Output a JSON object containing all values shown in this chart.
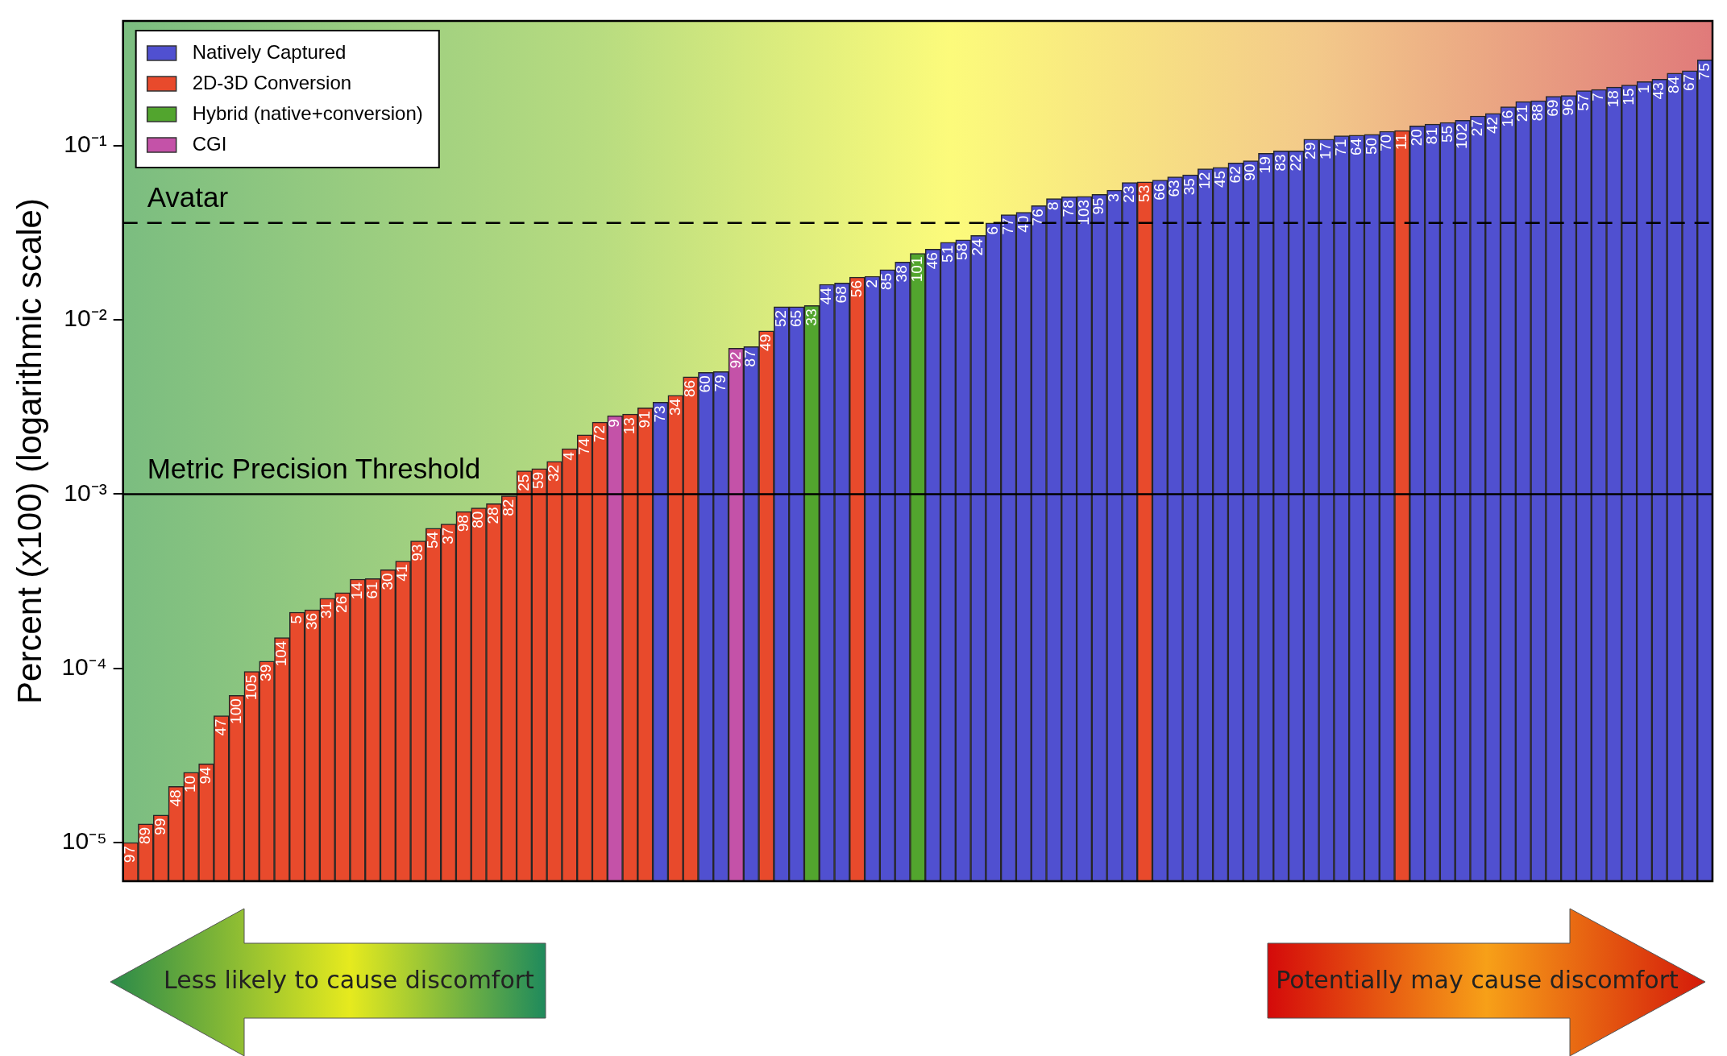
{
  "chart_data": {
    "type": "bar",
    "ylabel": "Percent (x100) (logarithmic scale)",
    "categories": [
      "97",
      "89",
      "99",
      "48",
      "10",
      "94",
      "47",
      "100",
      "105",
      "39",
      "104",
      "5",
      "36",
      "31",
      "26",
      "14",
      "61",
      "30",
      "41",
      "93",
      "54",
      "37",
      "98",
      "80",
      "28",
      "82",
      "25",
      "59",
      "32",
      "4",
      "74",
      "72",
      "9",
      "13",
      "91",
      "73",
      "34",
      "86",
      "60",
      "79",
      "92",
      "87",
      "49",
      "52",
      "65",
      "33",
      "44",
      "68",
      "56",
      "2",
      "85",
      "38",
      "101",
      "46",
      "51",
      "58",
      "24",
      "6",
      "77",
      "40",
      "76",
      "8",
      "78",
      "103",
      "95",
      "3",
      "23",
      "53",
      "66",
      "63",
      "35",
      "12",
      "45",
      "62",
      "90",
      "19",
      "83",
      "22",
      "29",
      "17",
      "71",
      "64",
      "50",
      "70",
      "11",
      "20",
      "81",
      "55",
      "102",
      "27",
      "42",
      "16",
      "21",
      "88",
      "69",
      "96",
      "57",
      "7",
      "18",
      "15",
      "1",
      "43",
      "84",
      "67",
      "75"
    ],
    "series": [
      {
        "name": "Natively Captured",
        "color": "#5050d0",
        "values": [
          null,
          null,
          null,
          null,
          null,
          null,
          null,
          null,
          null,
          null,
          null,
          null,
          null,
          null,
          null,
          null,
          null,
          null,
          null,
          null,
          null,
          null,
          null,
          null,
          null,
          null,
          null,
          null,
          null,
          null,
          null,
          null,
          null,
          null,
          null,
          0.00337,
          null,
          null,
          0.005,
          0.00505,
          null,
          0.00703,
          null,
          0.0119,
          0.0119,
          null,
          0.016,
          0.0163,
          null,
          0.0178,
          0.0194,
          0.0215,
          null,
          0.0255,
          0.0279,
          0.0288,
          0.0305,
          0.036,
          0.0402,
          0.0414,
          0.0453,
          0.0497,
          0.0509,
          0.0511,
          0.0525,
          0.0555,
          0.0615,
          null,
          0.0634,
          0.0663,
          0.068,
          0.0736,
          0.075,
          0.0796,
          0.082,
          0.0905,
          0.0933,
          0.0933,
          0.109,
          0.109,
          0.114,
          0.115,
          0.116,
          0.121,
          null,
          0.13,
          0.133,
          0.136,
          0.14,
          0.148,
          0.153,
          0.167,
          0.179,
          0.181,
          0.192,
          0.194,
          0.207,
          0.21,
          0.217,
          0.223,
          0.233,
          0.241,
          0.261,
          0.269,
          0.311
        ]
      },
      {
        "name": "2D-3D Conversion",
        "color": "#e84a2c",
        "values": [
          1e-05,
          1.28e-05,
          1.44e-05,
          2.1e-05,
          2.53e-05,
          2.83e-05,
          5.35e-05,
          7e-05,
          9.6e-05,
          0.00011,
          0.00015,
          0.00021,
          0.000217,
          0.000252,
          0.000272,
          0.000325,
          0.000327,
          0.000368,
          0.000413,
          0.000538,
          0.000636,
          0.000673,
          0.000794,
          0.000833,
          0.000881,
          0.000977,
          0.00136,
          0.0014,
          0.00154,
          0.00182,
          0.00219,
          0.00259,
          null,
          0.00288,
          0.00313,
          null,
          0.00369,
          0.00471,
          null,
          null,
          null,
          null,
          0.00865,
          null,
          null,
          null,
          null,
          null,
          0.0176,
          null,
          null,
          null,
          null,
          null,
          null,
          null,
          null,
          null,
          null,
          null,
          null,
          null,
          null,
          null,
          null,
          null,
          null,
          0.062,
          null,
          null,
          null,
          null,
          null,
          null,
          null,
          null,
          null,
          null,
          null,
          null,
          null,
          null,
          null,
          null,
          0.122,
          null,
          null,
          null,
          null,
          null,
          null,
          null,
          null,
          null,
          null,
          null,
          null,
          null,
          null,
          null,
          null,
          null,
          null,
          null,
          null
        ]
      },
      {
        "name": "Hybrid (native+conversion)",
        "color": "#52a52e",
        "values": [
          null,
          null,
          null,
          null,
          null,
          null,
          null,
          null,
          null,
          null,
          null,
          null,
          null,
          null,
          null,
          null,
          null,
          null,
          null,
          null,
          null,
          null,
          null,
          null,
          null,
          null,
          null,
          null,
          null,
          null,
          null,
          null,
          null,
          null,
          null,
          null,
          null,
          null,
          null,
          null,
          null,
          null,
          null,
          null,
          null,
          0.0121,
          null,
          null,
          null,
          null,
          null,
          null,
          0.0241,
          null,
          null,
          null,
          null,
          null,
          null,
          null,
          null,
          null,
          null,
          null,
          null,
          null,
          null,
          null,
          null,
          null,
          null,
          null,
          null,
          null,
          null,
          null,
          null,
          null,
          null,
          null,
          null,
          null,
          null,
          null,
          null,
          null,
          null,
          null,
          null,
          null,
          null,
          null,
          null,
          null,
          null,
          null,
          null,
          null,
          null,
          null,
          null,
          null,
          null,
          null,
          null
        ]
      },
      {
        "name": "CGI",
        "color": "#c452a8",
        "values": [
          null,
          null,
          null,
          null,
          null,
          null,
          null,
          null,
          null,
          null,
          null,
          null,
          null,
          null,
          null,
          null,
          null,
          null,
          null,
          null,
          null,
          null,
          null,
          null,
          null,
          null,
          null,
          null,
          null,
          null,
          null,
          null,
          0.00282,
          null,
          null,
          null,
          null,
          null,
          null,
          null,
          0.00687,
          null,
          null,
          null,
          null,
          null,
          null,
          null,
          null,
          null,
          null,
          null,
          null,
          null,
          null,
          null,
          null,
          null,
          null,
          null,
          null,
          null,
          null,
          null,
          null,
          null,
          null,
          null,
          null,
          null,
          null,
          null,
          null,
          null,
          null,
          null,
          null,
          null,
          null,
          null,
          null,
          null,
          null,
          null,
          null,
          null,
          null,
          null,
          null,
          null,
          null,
          null,
          null,
          null,
          null,
          null,
          null,
          null,
          null,
          null,
          null,
          null,
          null,
          null,
          null
        ]
      }
    ],
    "log": true,
    "ylim": [
      6e-06,
      0.52
    ],
    "yticks": [
      {
        "value": 1e-05,
        "label": "10⁻⁵"
      },
      {
        "value": 0.0001,
        "label": "10⁻⁴"
      },
      {
        "value": 0.001,
        "label": "10⁻³"
      },
      {
        "value": 0.01,
        "label": "10⁻²"
      },
      {
        "value": 0.1,
        "label": "10⁻¹"
      }
    ],
    "ref_lines": [
      {
        "axis": "y",
        "value": 0.036,
        "label": "Avatar",
        "color": "#000000",
        "line_style": "dashed"
      },
      {
        "axis": "y",
        "value": 0.001,
        "label": "Metric Precision Threshold",
        "color": "#000000",
        "line_style": "solid"
      }
    ],
    "annotations": [
      "Less likely to cause discomfort",
      "Potentially may cause discomfort"
    ],
    "legend": "top left"
  }
}
